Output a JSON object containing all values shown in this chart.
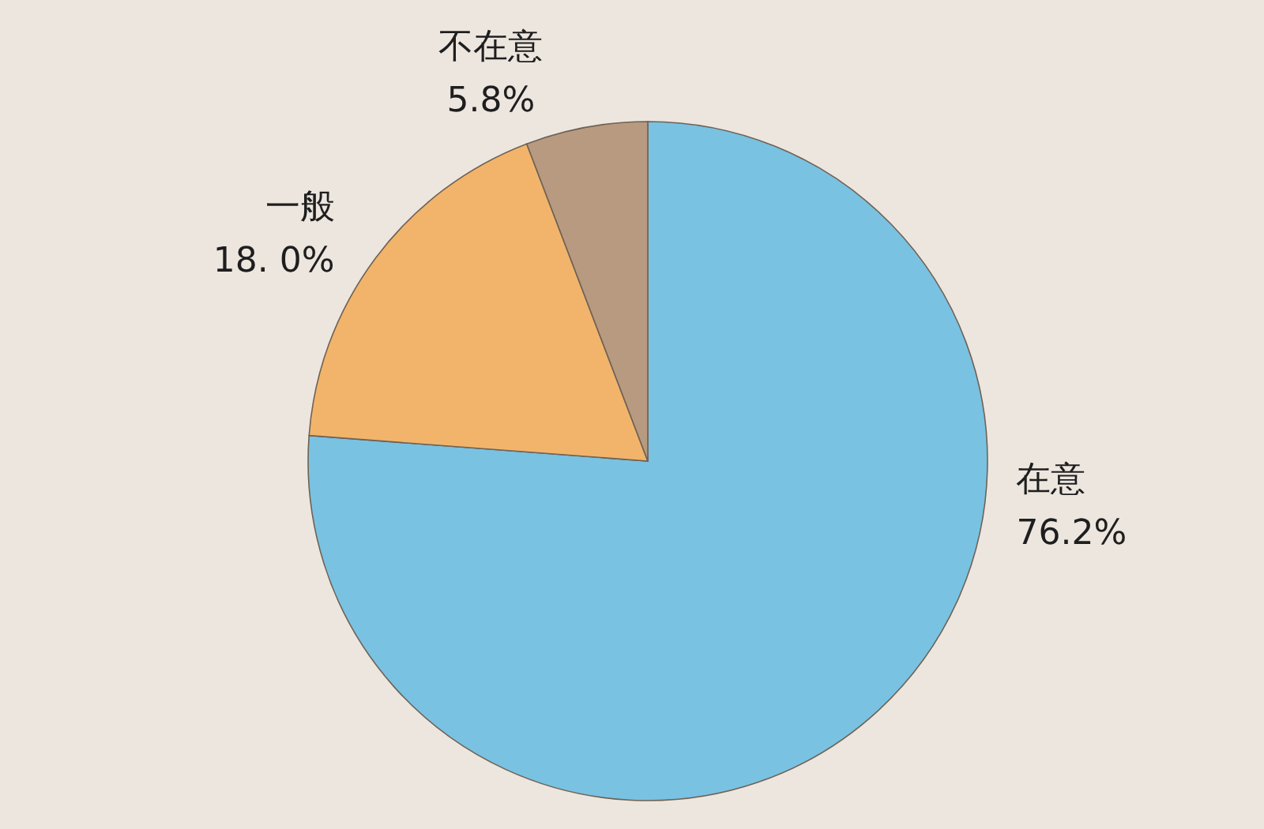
{
  "chart_data": {
    "type": "pie",
    "categories": [
      "在意",
      "一般",
      "不在意"
    ],
    "values": [
      76.2,
      18.0,
      5.8
    ],
    "colors": [
      "#79c2e2",
      "#f2b46b",
      "#b79a80"
    ],
    "value_labels": [
      "76.2%",
      "18. 0%",
      "5.8%"
    ]
  }
}
